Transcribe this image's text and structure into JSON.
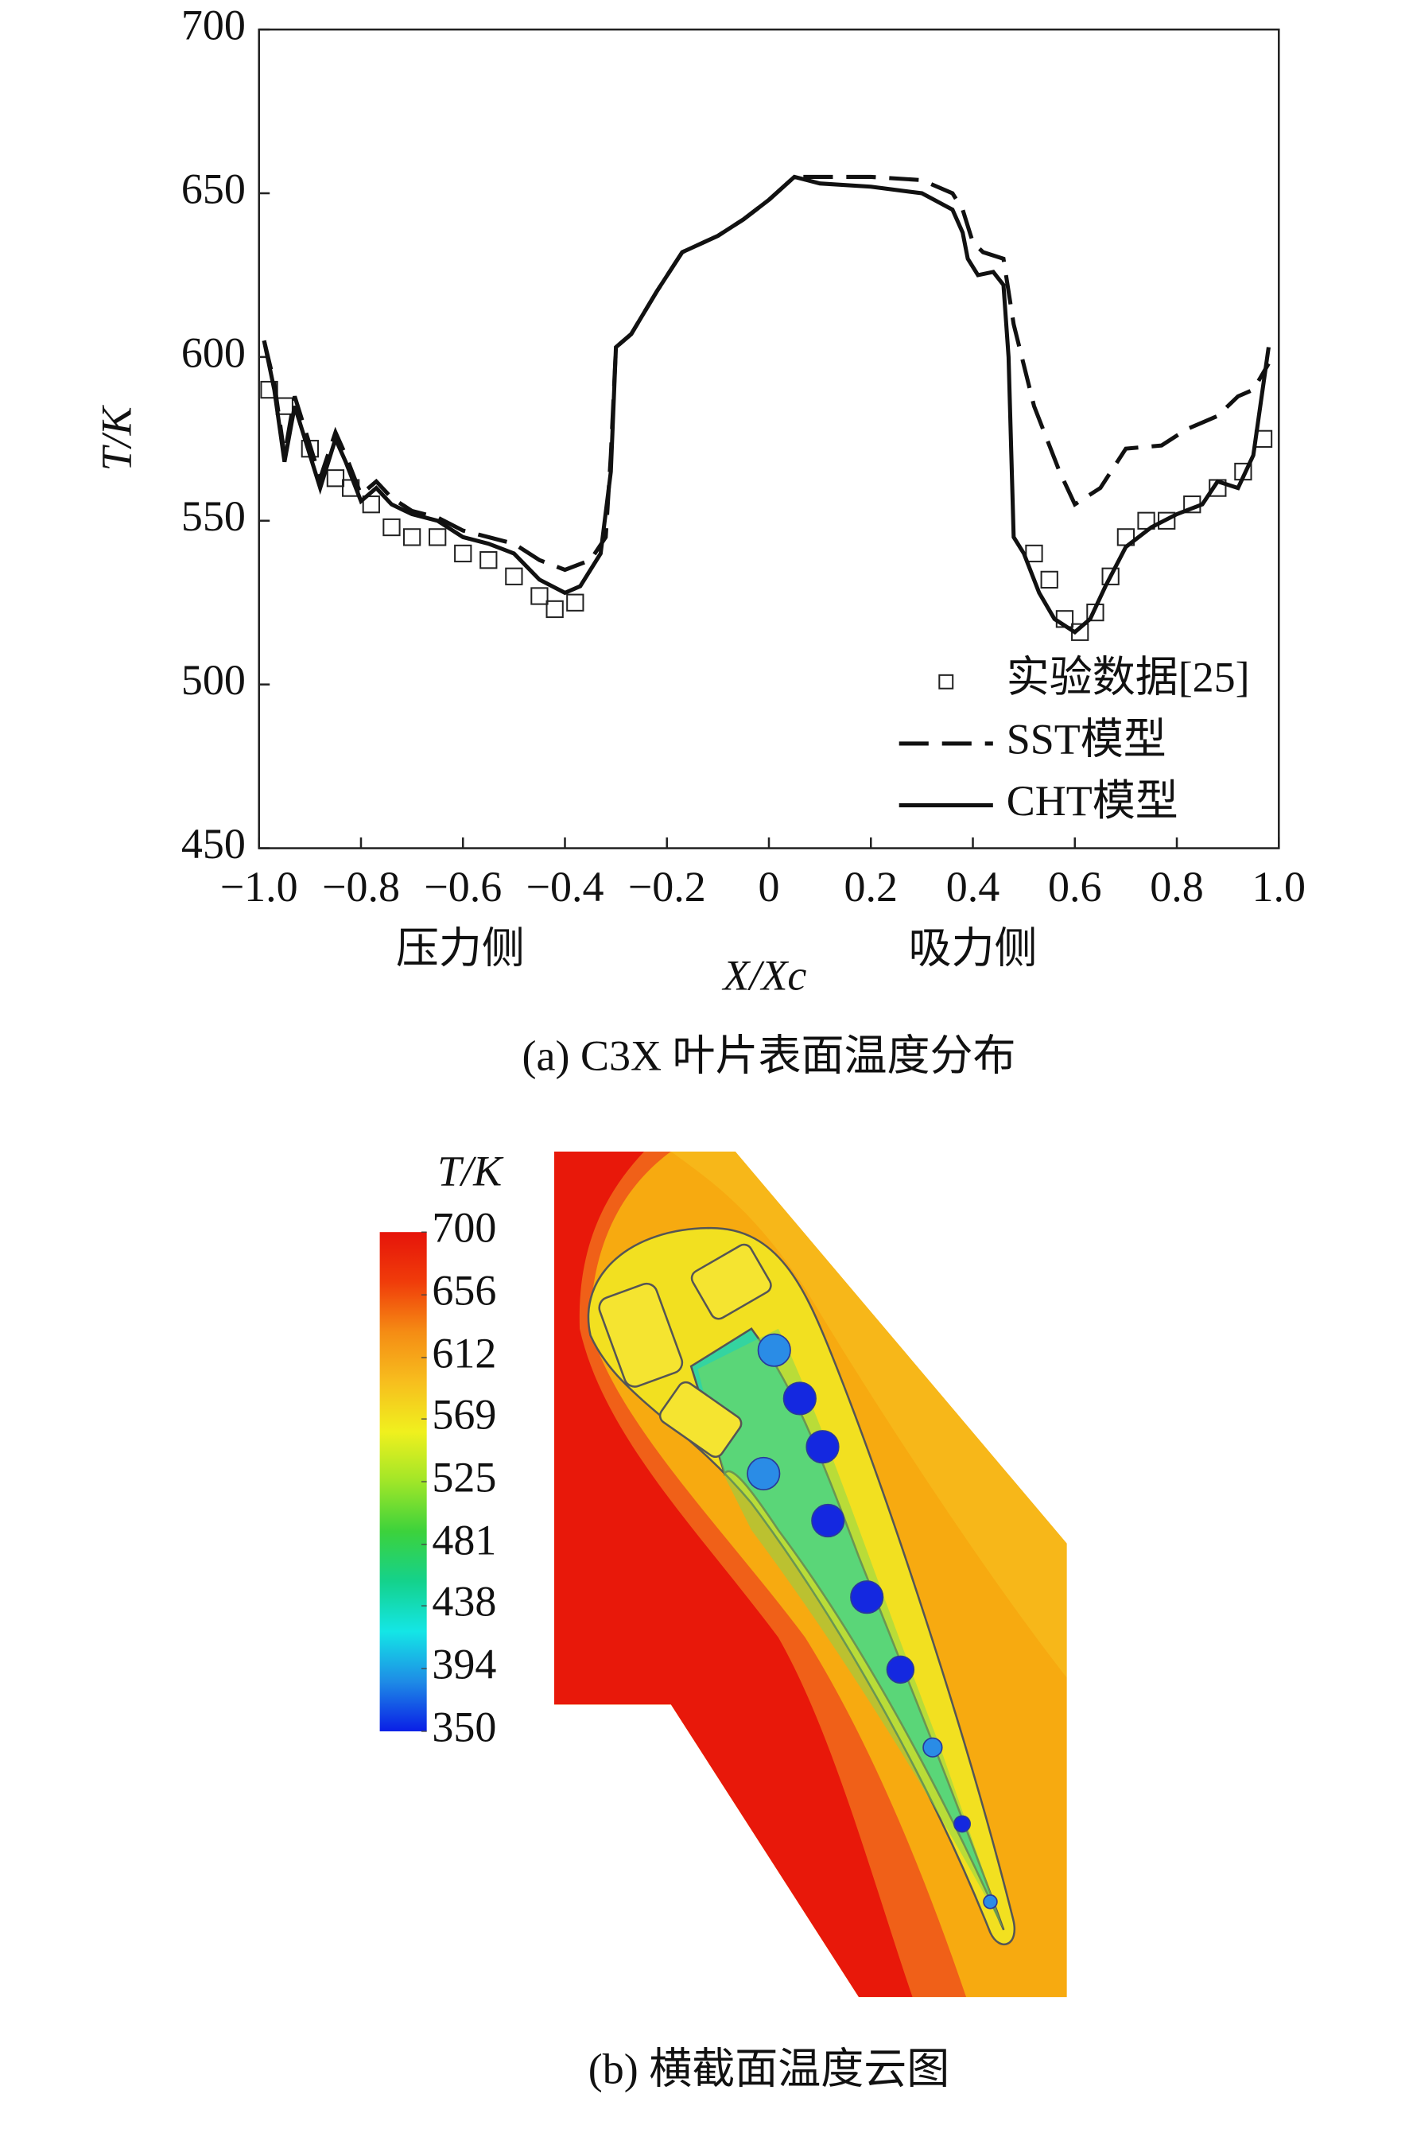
{
  "charts": [
    {
      "chart_data": {
        "type": "line",
        "y_label": "T/K",
        "x_label": "X/Xc",
        "side_labels": [
          "压力侧",
          "吸力侧"
        ],
        "caption": "(a) C3X 叶片表面温度分布",
        "xlim": [
          -1.0,
          1.0
        ],
        "xticks": [
          {
            "value": -1.0,
            "label": "−1.0"
          },
          {
            "value": -0.8,
            "label": "−0.8"
          },
          {
            "value": -0.6,
            "label": "−0.6"
          },
          {
            "value": -0.4,
            "label": "−0.4"
          },
          {
            "value": -0.2,
            "label": "−0.2"
          },
          0,
          0.2,
          0.4,
          0.6,
          0.8,
          {
            "value": 1.0,
            "label": "1.0"
          }
        ],
        "ylim": [
          450,
          700
        ],
        "yticks": [
          450,
          500,
          550,
          600,
          650,
          700
        ],
        "legend": "lower right",
        "series": [
          {
            "name": "实验数据[25]",
            "style": "markers",
            "color": "#222222",
            "x": [
              -0.98,
              -0.95,
              -0.9,
              -0.85,
              -0.82,
              -0.78,
              -0.74,
              -0.7,
              -0.65,
              -0.6,
              -0.55,
              -0.5,
              -0.45,
              -0.42,
              -0.38,
              0.52,
              0.55,
              0.58,
              0.61,
              0.64,
              0.67,
              0.7,
              0.74,
              0.78,
              0.83,
              0.88,
              0.93,
              0.97
            ],
            "values": [
              590,
              585,
              572,
              563,
              560,
              555,
              548,
              545,
              545,
              540,
              538,
              533,
              527,
              523,
              525,
              540,
              532,
              520,
              516,
              522,
              533,
              545,
              550,
              550,
              555,
              560,
              565,
              575
            ]
          },
          {
            "name": "SST模型",
            "style": "dashed",
            "color": "#111111",
            "x": [
              -0.99,
              -0.97,
              -0.95,
              -0.93,
              -0.91,
              -0.88,
              -0.85,
              -0.83,
              -0.8,
              -0.77,
              -0.74,
              -0.7,
              -0.65,
              -0.6,
              -0.55,
              -0.5,
              -0.45,
              -0.4,
              -0.35,
              -0.32,
              -0.31,
              -0.3,
              -0.27,
              -0.22,
              -0.17,
              -0.1,
              -0.05,
              0,
              0.05,
              0.1,
              0.2,
              0.3,
              0.36,
              0.38,
              0.4,
              0.42,
              0.46,
              0.48,
              0.52,
              0.57,
              0.6,
              0.65,
              0.7,
              0.77,
              0.82,
              0.88,
              0.92,
              0.95,
              0.98
            ],
            "values": [
              605,
              592,
              570,
              588,
              578,
              563,
              577,
              570,
              558,
              562,
              557,
              553,
              551,
              547,
              545,
              543,
              538,
              535,
              538,
              545,
              570,
              603,
              607,
              620,
              632,
              637,
              642,
              648,
              655,
              655,
              655,
              654,
              650,
              645,
              635,
              632,
              630,
              610,
              585,
              565,
              555,
              560,
              572,
              573,
              578,
              582,
              588,
              590,
              598
            ]
          },
          {
            "name": "CHT模型",
            "style": "solid",
            "color": "#111111",
            "x": [
              -0.99,
              -0.97,
              -0.95,
              -0.93,
              -0.91,
              -0.88,
              -0.85,
              -0.83,
              -0.8,
              -0.77,
              -0.74,
              -0.7,
              -0.65,
              -0.6,
              -0.55,
              -0.5,
              -0.45,
              -0.4,
              -0.37,
              -0.33,
              -0.31,
              -0.3,
              -0.27,
              -0.22,
              -0.17,
              -0.1,
              -0.05,
              0,
              0.05,
              0.1,
              0.2,
              0.3,
              0.36,
              0.38,
              0.39,
              0.41,
              0.44,
              0.46,
              0.47,
              0.48,
              0.5,
              0.53,
              0.56,
              0.6,
              0.63,
              0.66,
              0.7,
              0.75,
              0.8,
              0.85,
              0.88,
              0.92,
              0.95,
              0.98
            ],
            "values": [
              605,
              590,
              568,
              585,
              575,
              560,
              575,
              568,
              556,
              560,
              555,
              552,
              550,
              545,
              543,
              540,
              532,
              528,
              530,
              540,
              565,
              603,
              607,
              620,
              632,
              637,
              642,
              648,
              655,
              653,
              652,
              650,
              645,
              638,
              630,
              625,
              626,
              622,
              600,
              545,
              540,
              528,
              520,
              516,
              520,
              530,
              542,
              548,
              552,
              555,
              562,
              560,
              570,
              603
            ]
          }
        ]
      }
    },
    {
      "chart_data": {
        "type": "contour",
        "title": "T/K",
        "caption": "(b) 横截面温度云图",
        "ylim": [
          350,
          700
        ],
        "yticks": [
          700,
          656,
          612,
          569,
          525,
          481,
          438,
          394,
          350
        ],
        "colormap": [
          "#0a1ee6",
          "#1e8ce6",
          "#14e6e6",
          "#14d28c",
          "#3cd23c",
          "#a0e628",
          "#f0f01e",
          "#f7be1e",
          "#f58c14",
          "#f03c0a",
          "#e6140a"
        ]
      }
    }
  ]
}
